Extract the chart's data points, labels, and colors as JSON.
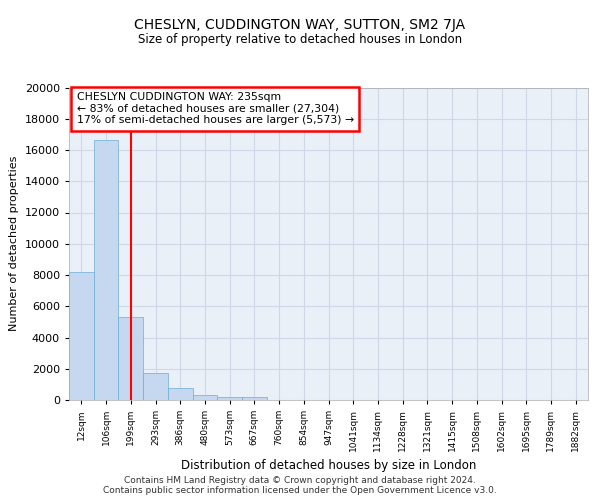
{
  "title": "CHESLYN, CUDDINGTON WAY, SUTTON, SM2 7JA",
  "subtitle": "Size of property relative to detached houses in London",
  "xlabel": "Distribution of detached houses by size in London",
  "ylabel": "Number of detached properties",
  "categories": [
    "12sqm",
    "106sqm",
    "199sqm",
    "293sqm",
    "386sqm",
    "480sqm",
    "573sqm",
    "667sqm",
    "760sqm",
    "854sqm",
    "947sqm",
    "1041sqm",
    "1134sqm",
    "1228sqm",
    "1321sqm",
    "1415sqm",
    "1508sqm",
    "1602sqm",
    "1695sqm",
    "1789sqm",
    "1882sqm"
  ],
  "values": [
    8200,
    16650,
    5300,
    1750,
    800,
    300,
    200,
    200,
    0,
    0,
    0,
    0,
    0,
    0,
    0,
    0,
    0,
    0,
    0,
    0,
    0
  ],
  "bar_color": "#c5d8ef",
  "bar_edge_color": "#6baed6",
  "property_line_x": 2.0,
  "property_label": "CHESLYN CUDDINGTON WAY: 235sqm",
  "annotation_line1": "← 83% of detached houses are smaller (27,304)",
  "annotation_line2": "17% of semi-detached houses are larger (5,573) →",
  "annotation_box_color": "white",
  "annotation_box_edge_color": "red",
  "line_color": "red",
  "ylim": [
    0,
    20000
  ],
  "yticks": [
    0,
    2000,
    4000,
    6000,
    8000,
    10000,
    12000,
    14000,
    16000,
    18000,
    20000
  ],
  "footer_line1": "Contains HM Land Registry data © Crown copyright and database right 2024.",
  "footer_line2": "Contains public sector information licensed under the Open Government Licence v3.0.",
  "grid_color": "#d0d8e8",
  "plot_bg_color": "#eaf0f8"
}
